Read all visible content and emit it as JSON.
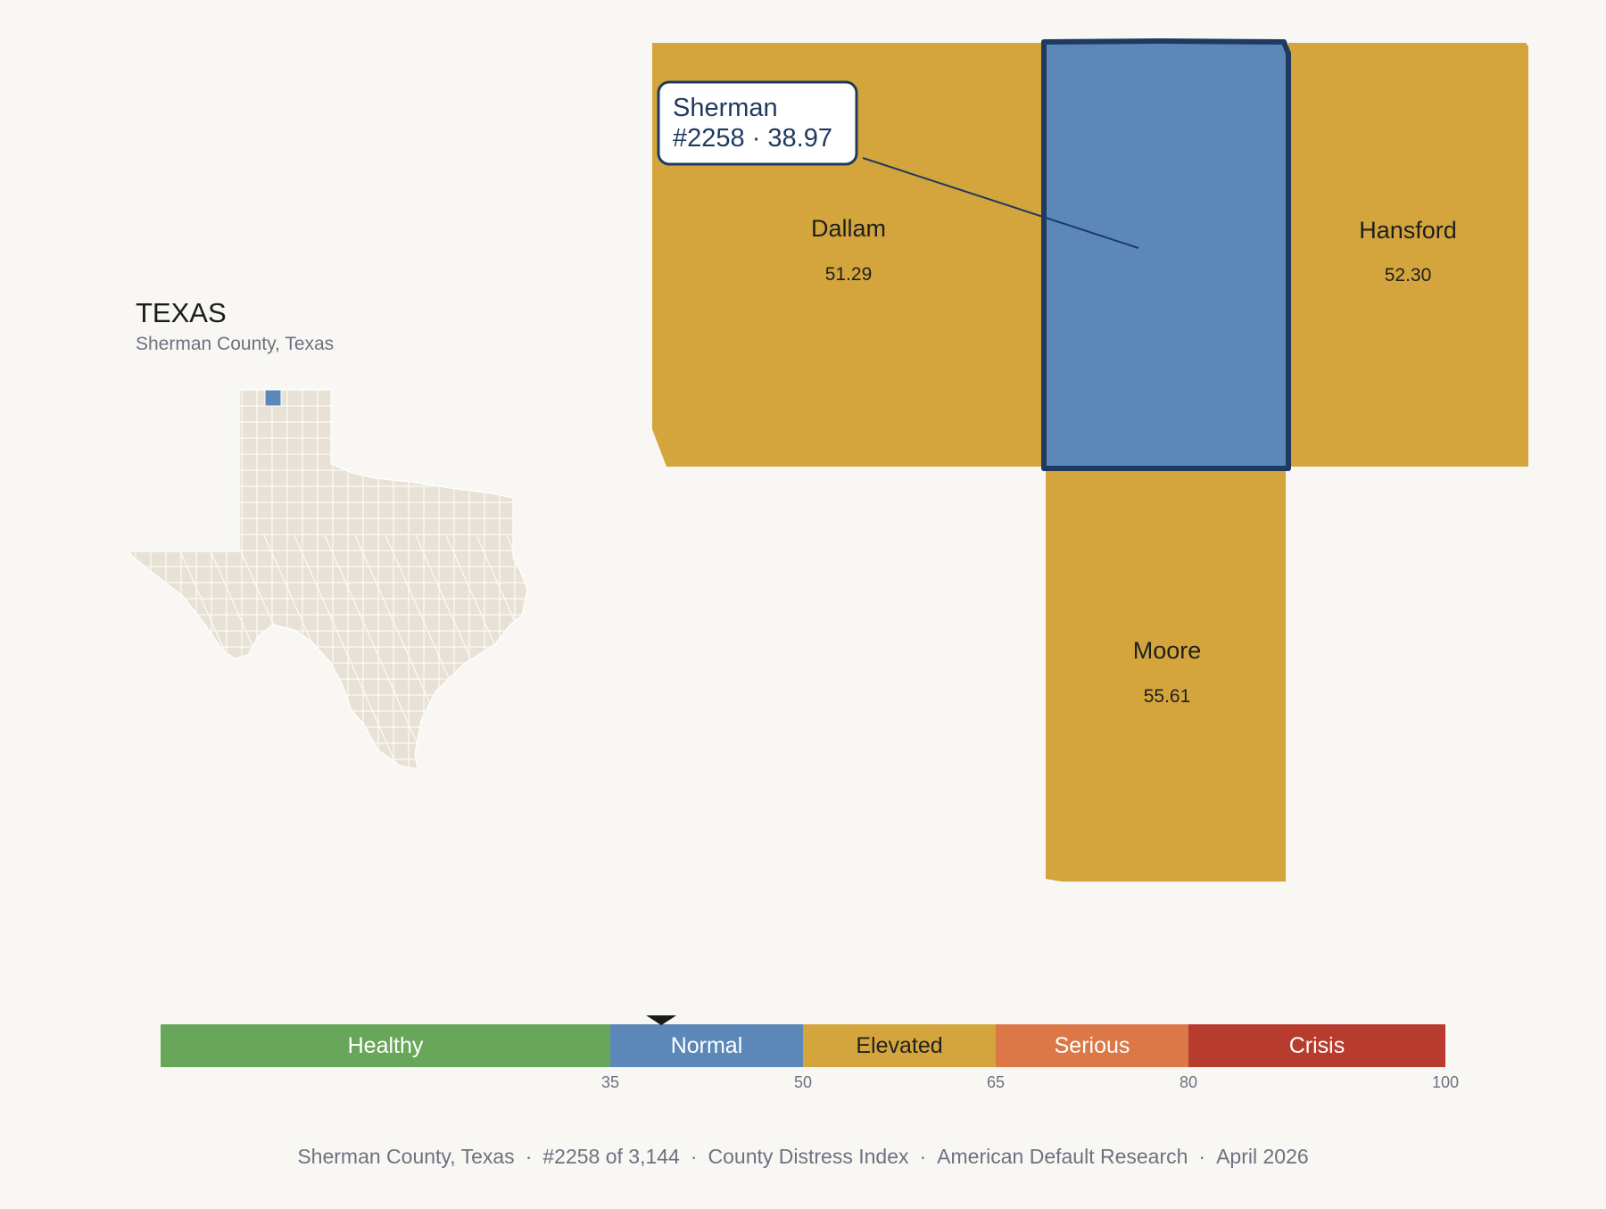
{
  "state": {
    "title": "TEXAS",
    "subtitle": "Sherman County, Texas",
    "highlight_color": "#5b88b8",
    "county_fill": "#e8e2d6"
  },
  "map": {
    "counties": [
      {
        "name": "Dallam",
        "value": "51.29",
        "category": "Elevated"
      },
      {
        "name": "Sherman",
        "value": "38.97",
        "category": "Normal",
        "selected": true
      },
      {
        "name": "Hansford",
        "value": "52.30",
        "category": "Elevated"
      },
      {
        "name": "Moore",
        "value": "55.61",
        "category": "Elevated"
      }
    ],
    "callout": {
      "line1": "Sherman",
      "line2": "#2258 · 38.97"
    }
  },
  "legend": {
    "segments": [
      {
        "label": "Healthy",
        "color": "#68a75a",
        "from": 0,
        "to": 35,
        "text_color": "#ffffff"
      },
      {
        "label": "Normal",
        "color": "#5b88b8",
        "from": 35,
        "to": 50,
        "text_color": "#ffffff"
      },
      {
        "label": "Elevated",
        "color": "#d4a53c",
        "from": 50,
        "to": 65,
        "text_color": "#222222"
      },
      {
        "label": "Serious",
        "color": "#dc7848",
        "from": 65,
        "to": 80,
        "text_color": "#ffffff"
      },
      {
        "label": "Crisis",
        "color": "#b83c2e",
        "from": 80,
        "to": 100,
        "text_color": "#ffffff"
      }
    ],
    "ticks": [
      "35",
      "50",
      "65",
      "80",
      "100"
    ],
    "marker_value": 38.97
  },
  "footer": {
    "county": "Sherman County, Texas",
    "rank": "#2258 of 3,144",
    "index_name": "County Distress Index",
    "publisher": "American Default Research",
    "date": "April 2026"
  },
  "colors": {
    "background": "#f9f7f4",
    "elevated": "#d4a53c",
    "normal": "#5b88b8",
    "selected_border": "#1e3a5f"
  }
}
